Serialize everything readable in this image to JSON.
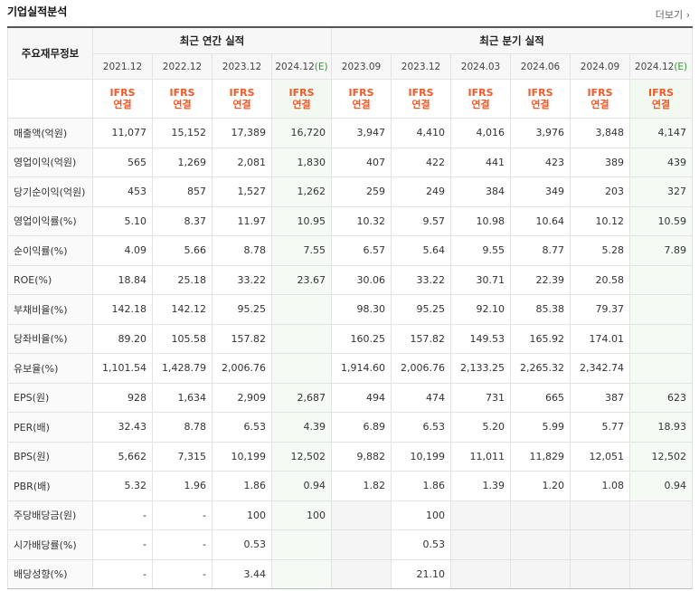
{
  "title": "기업실적분석",
  "more_label": "더보기",
  "header": {
    "label_col": "주요재무정보",
    "annual_group": "최근 연간 실적",
    "quarter_group": "최근 분기 실적",
    "annual_periods": [
      "2021.12",
      "2022.12",
      "2023.12",
      "2024.12"
    ],
    "annual_est_suffix": "(E)",
    "quarter_periods": [
      "2023.09",
      "2023.12",
      "2024.03",
      "2024.06",
      "2024.09",
      "2024.12"
    ],
    "quarter_est_suffix": "(E)",
    "basis_line1": "IFRS",
    "basis_line2": "연결"
  },
  "rows": [
    {
      "label": "매출액(억원)",
      "values": [
        "11,077",
        "15,152",
        "17,389",
        "16,720",
        "3,947",
        "4,410",
        "4,016",
        "3,976",
        "3,848",
        "4,147"
      ]
    },
    {
      "label": "영업이익(억원)",
      "values": [
        "565",
        "1,269",
        "2,081",
        "1,830",
        "407",
        "422",
        "441",
        "423",
        "389",
        "439"
      ]
    },
    {
      "label": "당기순이익(억원)",
      "values": [
        "453",
        "857",
        "1,527",
        "1,262",
        "259",
        "249",
        "384",
        "349",
        "203",
        "327"
      ]
    },
    {
      "label": "영업이익률(%)",
      "values": [
        "5.10",
        "8.37",
        "11.97",
        "10.95",
        "10.32",
        "9.57",
        "10.98",
        "10.64",
        "10.12",
        "10.59"
      ]
    },
    {
      "label": "순이익률(%)",
      "values": [
        "4.09",
        "5.66",
        "8.78",
        "7.55",
        "6.57",
        "5.64",
        "9.55",
        "8.77",
        "5.28",
        "7.89"
      ]
    },
    {
      "label": "ROE(%)",
      "values": [
        "18.84",
        "25.18",
        "33.22",
        "23.67",
        "30.06",
        "33.22",
        "30.71",
        "22.39",
        "20.58",
        ""
      ]
    },
    {
      "label": "부채비율(%)",
      "values": [
        "142.18",
        "142.12",
        "95.25",
        "",
        "98.30",
        "95.25",
        "92.10",
        "85.38",
        "79.37",
        ""
      ]
    },
    {
      "label": "당좌비율(%)",
      "values": [
        "89.20",
        "105.58",
        "157.82",
        "",
        "160.25",
        "157.82",
        "149.53",
        "165.92",
        "174.01",
        ""
      ]
    },
    {
      "label": "유보율(%)",
      "values": [
        "1,101.54",
        "1,428.79",
        "2,006.76",
        "",
        "1,914.60",
        "2,006.76",
        "2,133.25",
        "2,265.32",
        "2,342.74",
        ""
      ]
    },
    {
      "label": "EPS(원)",
      "values": [
        "928",
        "1,634",
        "2,909",
        "2,687",
        "494",
        "474",
        "731",
        "665",
        "387",
        "623"
      ]
    },
    {
      "label": "PER(배)",
      "values": [
        "32.43",
        "8.78",
        "6.53",
        "4.39",
        "6.89",
        "6.53",
        "5.20",
        "5.99",
        "5.77",
        "18.93"
      ]
    },
    {
      "label": "BPS(원)",
      "values": [
        "5,662",
        "7,315",
        "10,199",
        "12,502",
        "9,882",
        "10,199",
        "11,011",
        "11,829",
        "12,051",
        "12,502"
      ]
    },
    {
      "label": "PBR(배)",
      "values": [
        "5.32",
        "1.96",
        "1.86",
        "0.94",
        "1.82",
        "1.86",
        "1.39",
        "1.20",
        "1.08",
        "0.94"
      ]
    },
    {
      "label": "주당배당금(원)",
      "values": [
        "-",
        "-",
        "100",
        "100",
        "",
        "100",
        "",
        "",
        "",
        ""
      ]
    },
    {
      "label": "시가배당률(%)",
      "values": [
        "-",
        "-",
        "0.53",
        "",
        "",
        "0.53",
        "",
        "",
        "",
        ""
      ]
    },
    {
      "label": "배당성향(%)",
      "values": [
        "-",
        "-",
        "3.44",
        "",
        "",
        "21.10",
        "",
        "",
        "",
        ""
      ]
    }
  ]
}
